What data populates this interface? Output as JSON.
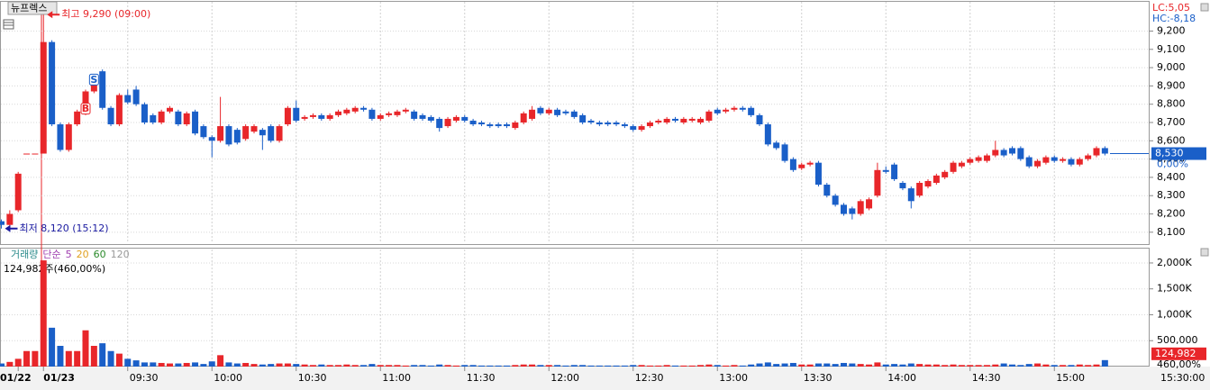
{
  "chart_data": {
    "type": "candlestick",
    "title": "뉴프렉스",
    "up_color": "#e8262a",
    "down_color": "#1a5fc8",
    "ylim": [
      8040,
      9360
    ],
    "yticks": [
      {
        "value": 8100,
        "label": "8,100"
      },
      {
        "value": 8200,
        "label": "8,200"
      },
      {
        "value": 8300,
        "label": "8,300"
      },
      {
        "value": 8400,
        "label": "8,400"
      },
      {
        "value": 8500,
        "label": "8,500"
      },
      {
        "value": 8600,
        "label": "8,600"
      },
      {
        "value": 8700,
        "label": "8,700"
      },
      {
        "value": 8800,
        "label": "8,800"
      },
      {
        "value": 8900,
        "label": "8,900"
      },
      {
        "value": 9000,
        "label": "9,000"
      },
      {
        "value": 9100,
        "label": "9,100"
      },
      {
        "value": 9200,
        "label": "9,200"
      }
    ],
    "lc": "LC:5,05",
    "hc": "HC:-8,18",
    "current_price": {
      "value": 8530,
      "label": "8,530"
    },
    "change": "0,00%",
    "last_time": "15:30:00",
    "annotations": [
      {
        "text": "최고 9,290 (09:00)",
        "value": 9290,
        "index": 5
      },
      {
        "text": "최저 8,120 (15:12)",
        "value": 8120,
        "index": 0
      }
    ],
    "signals": [
      {
        "label": "B",
        "index": 10
      },
      {
        "label": "S",
        "index": 11
      }
    ],
    "categories": [
      null,
      null,
      "01/22",
      null,
      null,
      "01/23",
      null,
      null,
      null,
      null,
      null,
      null,
      null,
      null,
      null,
      "09:30",
      null,
      null,
      null,
      null,
      null,
      null,
      null,
      null,
      null,
      "10:00",
      null,
      null,
      null,
      null,
      null,
      null,
      null,
      null,
      null,
      "10:30",
      null,
      null,
      null,
      null,
      null,
      null,
      null,
      null,
      null,
      "11:00",
      null,
      null,
      null,
      null,
      null,
      null,
      null,
      null,
      null,
      "11:30",
      null,
      null,
      null,
      null,
      null,
      null,
      null,
      null,
      null,
      "12:00",
      null,
      null,
      null,
      null,
      null,
      null,
      null,
      null,
      null,
      "12:30",
      null,
      null,
      null,
      null,
      null,
      null,
      null,
      null,
      null,
      "13:00",
      null,
      null,
      null,
      null,
      null,
      null,
      null,
      null,
      null,
      "13:30",
      null,
      null,
      null,
      null,
      null,
      null,
      null,
      null,
      null,
      "14:00",
      null,
      null,
      null,
      null,
      null,
      null,
      null,
      null,
      null,
      "14:30",
      null,
      null,
      null,
      null,
      null,
      null,
      null,
      null,
      null,
      "15:00",
      null,
      null,
      null,
      null,
      null,
      null
    ],
    "ohlc": [
      [
        8160,
        8170,
        8120,
        8140
      ],
      [
        8140,
        8220,
        8130,
        8200
      ],
      [
        8220,
        8430,
        8210,
        8420
      ],
      [
        8530,
        8530,
        8530,
        8530
      ],
      [
        8530,
        8530,
        8530,
        8530
      ],
      [
        8530,
        9290,
        8530,
        9140
      ],
      [
        9140,
        9150,
        8680,
        8690
      ],
      [
        8690,
        8700,
        8540,
        8550
      ],
      [
        8550,
        8700,
        8540,
        8690
      ],
      [
        8690,
        8770,
        8680,
        8760
      ],
      [
        8760,
        8880,
        8740,
        8870
      ],
      [
        8870,
        8950,
        8860,
        8940
      ],
      [
        8980,
        8990,
        8770,
        8780
      ],
      [
        8780,
        8790,
        8680,
        8690
      ],
      [
        8690,
        8860,
        8680,
        8850
      ],
      [
        8850,
        8880,
        8800,
        8810
      ],
      [
        8880,
        8900,
        8790,
        8800
      ],
      [
        8800,
        8810,
        8690,
        8700
      ],
      [
        8740,
        8750,
        8690,
        8700
      ],
      [
        8700,
        8770,
        8690,
        8760
      ],
      [
        8760,
        8790,
        8750,
        8780
      ],
      [
        8760,
        8770,
        8680,
        8690
      ],
      [
        8690,
        8760,
        8680,
        8750
      ],
      [
        8760,
        8770,
        8630,
        8640
      ],
      [
        8680,
        8690,
        8610,
        8620
      ],
      [
        8620,
        8630,
        8510,
        8600
      ],
      [
        8600,
        8840,
        8590,
        8680
      ],
      [
        8680,
        8690,
        8570,
        8580
      ],
      [
        8660,
        8670,
        8580,
        8590
      ],
      [
        8610,
        8690,
        8600,
        8680
      ],
      [
        8650,
        8690,
        8640,
        8680
      ],
      [
        8660,
        8670,
        8550,
        8630
      ],
      [
        8680,
        8690,
        8590,
        8600
      ],
      [
        8600,
        8690,
        8590,
        8680
      ],
      [
        8690,
        8790,
        8680,
        8780
      ],
      [
        8780,
        8820,
        8700,
        8710
      ],
      [
        8720,
        8740,
        8710,
        8730
      ],
      [
        8730,
        8750,
        8720,
        8740
      ],
      [
        8740,
        8750,
        8710,
        8720
      ],
      [
        8720,
        8750,
        8710,
        8740
      ],
      [
        8740,
        8770,
        8730,
        8760
      ],
      [
        8750,
        8780,
        8740,
        8770
      ],
      [
        8760,
        8790,
        8750,
        8780
      ],
      [
        8780,
        8790,
        8760,
        8770
      ],
      [
        8770,
        8780,
        8710,
        8720
      ],
      [
        8720,
        8750,
        8710,
        8740
      ],
      [
        8740,
        8760,
        8730,
        8750
      ],
      [
        8740,
        8770,
        8730,
        8760
      ],
      [
        8760,
        8780,
        8750,
        8770
      ],
      [
        8760,
        8770,
        8710,
        8720
      ],
      [
        8740,
        8750,
        8710,
        8720
      ],
      [
        8730,
        8740,
        8700,
        8710
      ],
      [
        8720,
        8730,
        8650,
        8670
      ],
      [
        8680,
        8730,
        8670,
        8720
      ],
      [
        8710,
        8740,
        8700,
        8730
      ],
      [
        8730,
        8740,
        8700,
        8710
      ],
      [
        8710,
        8720,
        8680,
        8690
      ],
      [
        8700,
        8710,
        8680,
        8690
      ],
      [
        8690,
        8700,
        8670,
        8680
      ],
      [
        8690,
        8700,
        8670,
        8680
      ],
      [
        8690,
        8700,
        8670,
        8680
      ],
      [
        8670,
        8710,
        8660,
        8700
      ],
      [
        8700,
        8760,
        8690,
        8750
      ],
      [
        8720,
        8790,
        8710,
        8770
      ],
      [
        8780,
        8790,
        8740,
        8750
      ],
      [
        8750,
        8780,
        8740,
        8770
      ],
      [
        8770,
        8780,
        8730,
        8740
      ],
      [
        8760,
        8770,
        8740,
        8750
      ],
      [
        8760,
        8770,
        8720,
        8730
      ],
      [
        8740,
        8750,
        8690,
        8700
      ],
      [
        8710,
        8720,
        8690,
        8700
      ],
      [
        8700,
        8710,
        8680,
        8690
      ],
      [
        8700,
        8710,
        8680,
        8690
      ],
      [
        8700,
        8710,
        8680,
        8690
      ],
      [
        8690,
        8700,
        8670,
        8680
      ],
      [
        8680,
        8690,
        8650,
        8660
      ],
      [
        8660,
        8690,
        8650,
        8680
      ],
      [
        8680,
        8710,
        8670,
        8700
      ],
      [
        8700,
        8720,
        8690,
        8710
      ],
      [
        8700,
        8730,
        8690,
        8720
      ],
      [
        8720,
        8730,
        8700,
        8710
      ],
      [
        8700,
        8730,
        8690,
        8720
      ],
      [
        8710,
        8730,
        8700,
        8720
      ],
      [
        8700,
        8730,
        8690,
        8720
      ],
      [
        8710,
        8770,
        8700,
        8760
      ],
      [
        8770,
        8780,
        8740,
        8750
      ],
      [
        8760,
        8780,
        8750,
        8770
      ],
      [
        8770,
        8790,
        8760,
        8780
      ],
      [
        8780,
        8790,
        8760,
        8770
      ],
      [
        8780,
        8790,
        8730,
        8740
      ],
      [
        8740,
        8750,
        8680,
        8690
      ],
      [
        8690,
        8700,
        8570,
        8580
      ],
      [
        8590,
        8600,
        8550,
        8560
      ],
      [
        8580,
        8590,
        8480,
        8490
      ],
      [
        8500,
        8510,
        8430,
        8440
      ],
      [
        8450,
        8480,
        8440,
        8470
      ],
      [
        8470,
        8490,
        8460,
        8480
      ],
      [
        8480,
        8490,
        8350,
        8360
      ],
      [
        8360,
        8370,
        8290,
        8300
      ],
      [
        8300,
        8310,
        8240,
        8250
      ],
      [
        8250,
        8260,
        8190,
        8200
      ],
      [
        8230,
        8240,
        8170,
        8200
      ],
      [
        8200,
        8280,
        8190,
        8270
      ],
      [
        8230,
        8290,
        8220,
        8280
      ],
      [
        8300,
        8480,
        8290,
        8440
      ],
      [
        8440,
        8460,
        8420,
        8430
      ],
      [
        8470,
        8480,
        8380,
        8390
      ],
      [
        8370,
        8380,
        8330,
        8340
      ],
      [
        8340,
        8350,
        8230,
        8270
      ],
      [
        8300,
        8380,
        8290,
        8370
      ],
      [
        8350,
        8390,
        8340,
        8380
      ],
      [
        8370,
        8420,
        8360,
        8410
      ],
      [
        8400,
        8440,
        8390,
        8430
      ],
      [
        8430,
        8490,
        8420,
        8480
      ],
      [
        8460,
        8490,
        8450,
        8480
      ],
      [
        8480,
        8510,
        8470,
        8500
      ],
      [
        8490,
        8520,
        8480,
        8510
      ],
      [
        8490,
        8530,
        8480,
        8520
      ],
      [
        8520,
        8600,
        8510,
        8550
      ],
      [
        8550,
        8560,
        8510,
        8520
      ],
      [
        8560,
        8570,
        8520,
        8530
      ],
      [
        8560,
        8570,
        8490,
        8500
      ],
      [
        8510,
        8520,
        8450,
        8460
      ],
      [
        8460,
        8500,
        8450,
        8490
      ],
      [
        8480,
        8520,
        8470,
        8510
      ],
      [
        8510,
        8520,
        8480,
        8490
      ],
      [
        8490,
        8510,
        8480,
        8500
      ],
      [
        8500,
        8510,
        8460,
        8470
      ],
      [
        8470,
        8510,
        8460,
        8500
      ],
      [
        8500,
        8530,
        8490,
        8520
      ],
      [
        8520,
        8570,
        8510,
        8560
      ],
      [
        8560,
        8570,
        8520,
        8530
      ]
    ],
    "volume_legend": [
      {
        "text": "거래량",
        "color": "#2a8a8a"
      },
      {
        "text": "단순",
        "color": "#a040b0"
      },
      {
        "text": "5",
        "color": "#a040b0"
      },
      {
        "text": "20",
        "color": "#e0a020"
      },
      {
        "text": "60",
        "color": "#2a8a2a"
      },
      {
        "text": "120",
        "color": "#999999"
      }
    ],
    "volume_info": "124,982주(460,00%)",
    "volume_ylim": [
      0,
      2260000
    ],
    "volume_yticks": [
      {
        "value": 500000,
        "label": "500,000"
      },
      {
        "value": 1000000,
        "label": "1,000K"
      },
      {
        "value": 1500000,
        "label": "1,500K"
      },
      {
        "value": 2000000,
        "label": "2,000K"
      }
    ],
    "current_volume": {
      "value": 124982,
      "label": "124,982"
    },
    "volume_ratio": "460,00%",
    "volume": [
      60000,
      90000,
      150000,
      300000,
      300000,
      2050000,
      750000,
      400000,
      300000,
      300000,
      700000,
      400000,
      450000,
      300000,
      250000,
      150000,
      120000,
      80000,
      80000,
      70000,
      60000,
      60000,
      70000,
      80000,
      50000,
      100000,
      220000,
      80000,
      60000,
      70000,
      50000,
      40000,
      50000,
      60000,
      60000,
      50000,
      40000,
      30000,
      40000,
      30000,
      30000,
      40000,
      30000,
      30000,
      50000,
      30000,
      30000,
      30000,
      20000,
      30000,
      30000,
      20000,
      40000,
      30000,
      20000,
      30000,
      30000,
      20000,
      20000,
      20000,
      20000,
      30000,
      40000,
      40000,
      30000,
      30000,
      30000,
      20000,
      30000,
      30000,
      20000,
      20000,
      20000,
      20000,
      20000,
      30000,
      30000,
      20000,
      20000,
      30000,
      20000,
      20000,
      20000,
      30000,
      40000,
      30000,
      20000,
      30000,
      20000,
      40000,
      60000,
      80000,
      50000,
      60000,
      70000,
      40000,
      40000,
      60000,
      60000,
      50000,
      70000,
      60000,
      50000,
      40000,
      80000,
      40000,
      50000,
      40000,
      60000,
      50000,
      40000,
      40000,
      30000,
      40000,
      30000,
      30000,
      30000,
      30000,
      40000,
      60000,
      40000,
      30000,
      50000,
      60000,
      40000,
      30000,
      30000,
      30000,
      40000,
      30000,
      40000,
      124982
    ]
  }
}
